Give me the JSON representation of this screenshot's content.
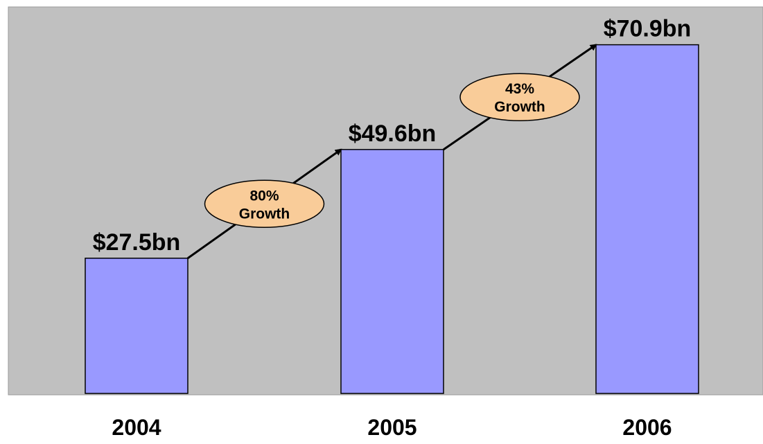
{
  "chart_data": {
    "type": "bar",
    "categories": [
      "2004",
      "2005",
      "2006"
    ],
    "values": [
      27.5,
      49.6,
      70.9
    ],
    "value_labels": [
      "$27.5bn",
      "$49.6bn",
      "$70.9bn"
    ],
    "title": "",
    "xlabel": "",
    "ylabel": "",
    "ylim": [
      0,
      80
    ],
    "grid": false,
    "legend": "none",
    "annotations": [
      {
        "from": "2004",
        "to": "2005",
        "line1": "80%",
        "line2": "Growth"
      },
      {
        "from": "2005",
        "to": "2006",
        "line1": "43%",
        "line2": "Growth"
      }
    ],
    "colors": {
      "plot_background": "#c0c0c0",
      "bar_fill": "#9999ff",
      "bar_stroke": "#000000",
      "annotation_fill": "#f9cc99",
      "arrow": "#000000"
    }
  }
}
